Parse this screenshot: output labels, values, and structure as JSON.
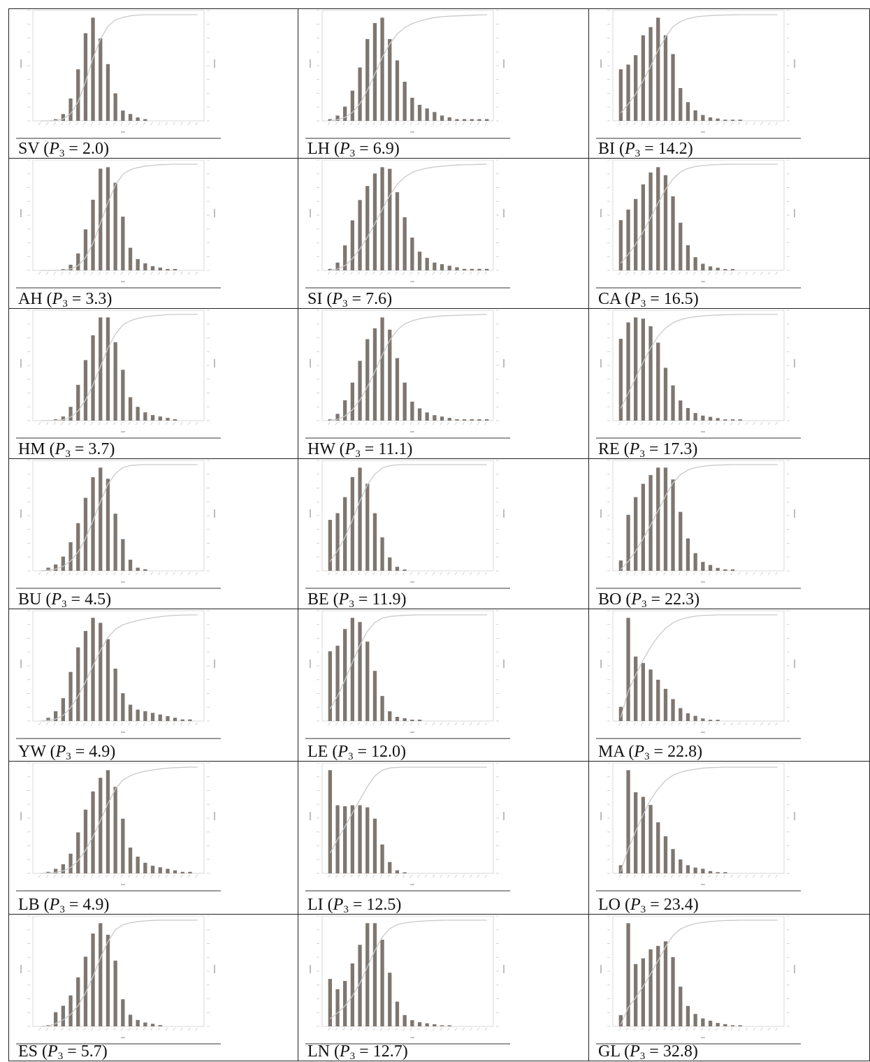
{
  "colors": {
    "bar": "#7f7670",
    "curve": "#c9c9c9",
    "frame": "#d9d9d9",
    "rule": "#999999",
    "border": "#222222"
  },
  "chart_data": [
    {
      "type": "bar",
      "label": "SV",
      "p3": "2.0",
      "values": [
        0,
        0,
        1,
        4,
        13,
        30,
        51,
        60,
        48,
        33,
        16,
        6,
        4,
        2,
        1,
        0,
        0,
        0,
        0,
        0,
        0,
        0
      ]
    },
    {
      "type": "bar",
      "label": "LH",
      "p3": "6.9",
      "values": [
        1,
        3,
        8,
        17,
        30,
        46,
        55,
        58,
        46,
        34,
        22,
        13,
        9,
        7,
        5,
        3,
        2,
        1,
        1,
        1,
        1,
        1
      ]
    },
    {
      "type": "bar",
      "label": "BI",
      "p3": "14.2",
      "values": [
        44,
        48,
        56,
        73,
        80,
        88,
        73,
        57,
        28,
        16,
        9,
        5,
        3,
        2,
        1,
        1,
        1,
        0,
        0,
        0,
        0,
        0
      ]
    },
    {
      "type": "bar",
      "label": "AH",
      "p3": "3.3",
      "values": [
        0,
        0,
        0,
        1,
        4,
        12,
        29,
        50,
        72,
        73,
        62,
        38,
        16,
        8,
        5,
        3,
        2,
        1,
        1,
        0,
        0,
        0
      ]
    },
    {
      "type": "bar",
      "label": "SI",
      "p3": "7.6",
      "values": [
        1,
        5,
        16,
        32,
        45,
        54,
        62,
        66,
        65,
        50,
        34,
        21,
        12,
        8,
        5,
        4,
        3,
        2,
        1,
        1,
        1,
        1
      ]
    },
    {
      "type": "bar",
      "label": "CA",
      "p3": "16.5",
      "values": [
        38,
        46,
        54,
        65,
        74,
        78,
        72,
        56,
        36,
        19,
        10,
        5,
        3,
        2,
        1,
        1,
        0,
        0,
        0,
        0,
        0,
        0
      ]
    },
    {
      "type": "bar",
      "label": "HM",
      "p3": "3.7",
      "values": [
        0,
        0,
        1,
        3,
        10,
        26,
        44,
        62,
        75,
        75,
        57,
        37,
        17,
        10,
        6,
        4,
        3,
        2,
        1,
        0,
        0,
        0
      ]
    },
    {
      "type": "bar",
      "label": "HW",
      "p3": "11.1",
      "values": [
        1,
        5,
        15,
        28,
        44,
        60,
        68,
        76,
        67,
        46,
        28,
        14,
        9,
        6,
        4,
        3,
        2,
        1,
        1,
        1,
        1,
        1
      ]
    },
    {
      "type": "bar",
      "label": "RE",
      "p3": "17.3",
      "values": [
        65,
        78,
        82,
        81,
        75,
        62,
        42,
        28,
        16,
        10,
        6,
        4,
        3,
        2,
        1,
        1,
        1,
        0,
        0,
        0,
        0,
        0
      ]
    },
    {
      "type": "bar",
      "label": "BU",
      "p3": "4.5",
      "values": [
        0,
        2,
        4,
        9,
        18,
        30,
        46,
        59,
        65,
        58,
        36,
        20,
        7,
        2,
        1,
        0,
        0,
        0,
        0,
        0,
        0,
        0
      ]
    },
    {
      "type": "bar",
      "label": "BE",
      "p3": "11.9",
      "values": [
        38,
        43,
        55,
        70,
        77,
        65,
        43,
        25,
        10,
        3,
        1,
        0,
        0,
        0,
        0,
        0,
        0,
        0,
        0,
        0,
        0,
        0
      ]
    },
    {
      "type": "bar",
      "label": "BO",
      "p3": "22.3",
      "values": [
        7,
        38,
        50,
        59,
        65,
        70,
        70,
        62,
        40,
        22,
        12,
        6,
        4,
        2,
        1,
        1,
        0,
        0,
        0,
        0,
        0,
        0
      ]
    },
    {
      "type": "bar",
      "label": "YW",
      "p3": "4.9",
      "values": [
        0,
        2,
        6,
        14,
        30,
        45,
        55,
        63,
        60,
        50,
        32,
        17,
        10,
        7,
        6,
        5,
        4,
        3,
        2,
        1,
        1,
        0
      ]
    },
    {
      "type": "bar",
      "label": "LE",
      "p3": "12.0",
      "values": [
        50,
        54,
        66,
        74,
        71,
        57,
        36,
        18,
        7,
        3,
        2,
        1,
        1,
        0,
        0,
        0,
        0,
        0,
        0,
        0,
        0,
        0
      ]
    },
    {
      "type": "bar",
      "label": "MA",
      "p3": "22.8",
      "values": [
        11,
        80,
        50,
        45,
        40,
        32,
        25,
        17,
        10,
        6,
        4,
        2,
        1,
        1,
        0,
        0,
        0,
        0,
        0,
        0,
        0,
        0
      ]
    },
    {
      "type": "bar",
      "label": "LB",
      "p3": "4.9",
      "values": [
        0,
        1,
        3,
        6,
        13,
        27,
        42,
        54,
        63,
        68,
        57,
        36,
        17,
        11,
        7,
        5,
        4,
        3,
        2,
        1,
        1,
        0
      ]
    },
    {
      "type": "bar",
      "label": "LI",
      "p3": "12.5",
      "values": [
        100,
        66,
        65,
        66,
        66,
        64,
        53,
        28,
        11,
        3,
        1,
        0,
        0,
        0,
        0,
        0,
        0,
        0,
        0,
        0,
        0,
        0
      ]
    },
    {
      "type": "bar",
      "label": "LO",
      "p3": "23.4",
      "values": [
        7,
        89,
        70,
        66,
        59,
        44,
        32,
        21,
        12,
        7,
        5,
        4,
        2,
        1,
        1,
        0,
        0,
        0,
        0,
        0,
        0,
        0
      ]
    },
    {
      "type": "bar",
      "label": "ES",
      "p3": "5.7",
      "values": [
        0,
        1,
        11,
        16,
        24,
        38,
        54,
        72,
        80,
        71,
        51,
        21,
        9,
        5,
        3,
        2,
        1,
        0,
        0,
        0,
        0,
        0
      ]
    },
    {
      "type": "bar",
      "label": "LN",
      "p3": "12.7",
      "values": [
        46,
        36,
        44,
        61,
        79,
        100,
        100,
        84,
        52,
        24,
        11,
        6,
        4,
        3,
        2,
        1,
        1,
        0,
        0,
        0,
        0,
        0
      ]
    },
    {
      "type": "bar",
      "label": "GL",
      "p3": "32.8",
      "values": [
        10,
        91,
        55,
        60,
        68,
        71,
        75,
        61,
        35,
        18,
        11,
        7,
        5,
        3,
        2,
        1,
        1,
        0,
        0,
        0,
        0,
        0
      ]
    }
  ]
}
